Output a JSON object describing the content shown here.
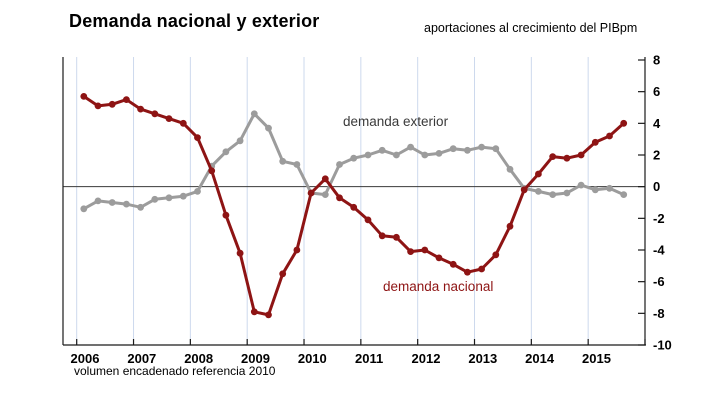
{
  "header": {
    "title": "Demanda nacional y exterior",
    "subtitle": "aportaciones al crecimiento del PIBpm"
  },
  "footnote": "volumen encadenado referencia 2010",
  "colors": {
    "nacional": "#8e1414",
    "exterior": "#9c9c9c",
    "exterior_label": "#3a3a3a",
    "gridline": "#cdd9ed",
    "axis": "#1a1a1a",
    "zero_line": "#3a3a3a",
    "text": "#000000"
  },
  "chart_data": {
    "type": "line",
    "title": "Demanda nacional y exterior",
    "subtitle": "aportaciones al crecimiento del PIBpm",
    "footnote": "volumen encadenado referencia 2010",
    "x_year_labels": [
      "2006",
      "2007",
      "2008",
      "2009",
      "2010",
      "2011",
      "2012",
      "2013",
      "2014",
      "2015"
    ],
    "quarters": [
      "2006Q1",
      "2006Q2",
      "2006Q3",
      "2006Q4",
      "2007Q1",
      "2007Q2",
      "2007Q3",
      "2007Q4",
      "2008Q1",
      "2008Q2",
      "2008Q3",
      "2008Q4",
      "2009Q1",
      "2009Q2",
      "2009Q3",
      "2009Q4",
      "2010Q1",
      "2010Q2",
      "2010Q3",
      "2010Q4",
      "2011Q1",
      "2011Q2",
      "2011Q3",
      "2011Q4",
      "2012Q1",
      "2012Q2",
      "2012Q3",
      "2012Q4",
      "2013Q1",
      "2013Q2",
      "2013Q3",
      "2013Q4",
      "2014Q1",
      "2014Q2",
      "2014Q3",
      "2014Q4",
      "2015Q1",
      "2015Q2",
      "2015Q3"
    ],
    "ylim": [
      -10,
      8
    ],
    "y_ticks": [
      8,
      6,
      4,
      2,
      0,
      -2,
      -4,
      -6,
      -8,
      -10
    ],
    "grid": "vertical-year-gridlines",
    "legend_position": "inline-labels",
    "series": [
      {
        "name": "demanda nacional",
        "color": "#8e1414",
        "values": [
          5.7,
          5.1,
          5.2,
          5.5,
          4.9,
          4.6,
          4.3,
          4.0,
          3.1,
          1.0,
          -1.8,
          -4.2,
          -7.9,
          -8.1,
          -5.5,
          -4.0,
          -0.4,
          0.5,
          -0.7,
          -1.3,
          -2.1,
          -3.1,
          -3.2,
          -4.1,
          -4.0,
          -4.5,
          -4.9,
          -5.4,
          -5.2,
          -4.3,
          -2.5,
          -0.2,
          0.8,
          1.9,
          1.8,
          2.0,
          2.8,
          3.2,
          4.0
        ]
      },
      {
        "name": "demanda exterior",
        "color": "#9c9c9c",
        "values": [
          -1.4,
          -0.9,
          -1.0,
          -1.1,
          -1.3,
          -0.8,
          -0.7,
          -0.6,
          -0.3,
          1.3,
          2.2,
          2.9,
          4.6,
          3.7,
          1.6,
          1.4,
          -0.4,
          -0.5,
          1.4,
          1.8,
          2.0,
          2.3,
          2.0,
          2.5,
          2.0,
          2.1,
          2.4,
          2.3,
          2.5,
          2.4,
          1.1,
          -0.1,
          -0.3,
          -0.5,
          -0.4,
          0.1,
          -0.2,
          -0.1,
          -0.5
        ]
      }
    ]
  }
}
